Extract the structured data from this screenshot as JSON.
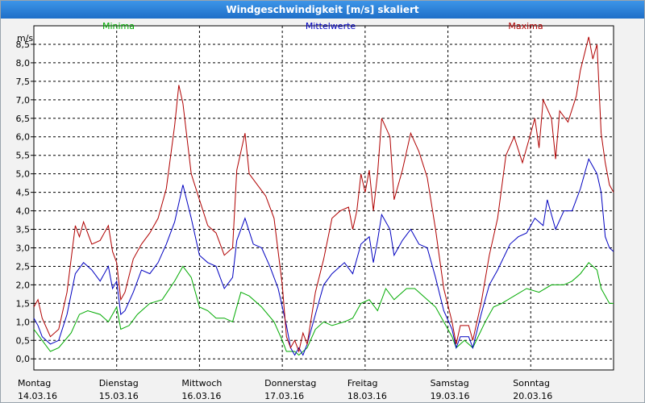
{
  "window": {
    "title": "Windgeschwindigkeit [m/s] skaliert"
  },
  "chart_data": {
    "type": "line",
    "title": "Windgeschwindigkeit [m/s] skaliert",
    "ylabel": "m/s",
    "ylim": [
      -0.3,
      9.0
    ],
    "xlim": [
      0,
      7
    ],
    "y_ticks": [
      "0,0",
      "0,5",
      "1,0",
      "1,5",
      "2,0",
      "2,5",
      "3,0",
      "3,5",
      "4,0",
      "4,5",
      "5,0",
      "5,5",
      "6,0",
      "6,5",
      "7,0",
      "7,5",
      "8,0",
      "8,5"
    ],
    "x_ticks": [
      {
        "day": "Montag",
        "date": "14.03.16"
      },
      {
        "day": "Dienstag",
        "date": "15.03.16"
      },
      {
        "day": "Mittwoch",
        "date": "16.03.16"
      },
      {
        "day": "Donnerstag",
        "date": "17.03.16"
      },
      {
        "day": "Freitag",
        "date": "18.03.16"
      },
      {
        "day": "Samstag",
        "date": "19.03.16"
      },
      {
        "day": "Sonntag",
        "date": "20.03.16"
      }
    ],
    "grid": true,
    "legend_position": "top",
    "series": [
      {
        "name": "Minima",
        "color": "#00aa00",
        "points": [
          [
            0.0,
            0.8
          ],
          [
            0.1,
            0.5
          ],
          [
            0.2,
            0.2
          ],
          [
            0.3,
            0.3
          ],
          [
            0.45,
            0.7
          ],
          [
            0.55,
            1.2
          ],
          [
            0.65,
            1.3
          ],
          [
            0.8,
            1.2
          ],
          [
            0.9,
            1.0
          ],
          [
            1.0,
            1.4
          ],
          [
            1.05,
            0.8
          ],
          [
            1.15,
            0.9
          ],
          [
            1.25,
            1.2
          ],
          [
            1.4,
            1.5
          ],
          [
            1.55,
            1.6
          ],
          [
            1.7,
            2.1
          ],
          [
            1.8,
            2.5
          ],
          [
            1.9,
            2.2
          ],
          [
            2.0,
            1.4
          ],
          [
            2.1,
            1.3
          ],
          [
            2.2,
            1.1
          ],
          [
            2.3,
            1.1
          ],
          [
            2.4,
            1.0
          ],
          [
            2.5,
            1.8
          ],
          [
            2.6,
            1.7
          ],
          [
            2.75,
            1.4
          ],
          [
            2.9,
            1.0
          ],
          [
            3.0,
            0.5
          ],
          [
            3.05,
            0.2
          ],
          [
            3.15,
            0.2
          ],
          [
            3.2,
            0.1
          ],
          [
            3.3,
            0.3
          ],
          [
            3.4,
            0.8
          ],
          [
            3.5,
            1.0
          ],
          [
            3.6,
            0.9
          ],
          [
            3.75,
            1.0
          ],
          [
            3.85,
            1.1
          ],
          [
            3.95,
            1.5
          ],
          [
            4.05,
            1.6
          ],
          [
            4.15,
            1.3
          ],
          [
            4.25,
            1.9
          ],
          [
            4.35,
            1.6
          ],
          [
            4.5,
            1.9
          ],
          [
            4.6,
            1.9
          ],
          [
            4.75,
            1.6
          ],
          [
            4.85,
            1.4
          ],
          [
            4.95,
            1.0
          ],
          [
            5.05,
            0.6
          ],
          [
            5.1,
            0.3
          ],
          [
            5.2,
            0.5
          ],
          [
            5.3,
            0.3
          ],
          [
            5.45,
            1.0
          ],
          [
            5.55,
            1.4
          ],
          [
            5.65,
            1.5
          ],
          [
            5.8,
            1.7
          ],
          [
            5.95,
            1.9
          ],
          [
            6.1,
            1.8
          ],
          [
            6.25,
            2.0
          ],
          [
            6.4,
            2.0
          ],
          [
            6.5,
            2.1
          ],
          [
            6.6,
            2.3
          ],
          [
            6.7,
            2.6
          ],
          [
            6.8,
            2.4
          ],
          [
            6.85,
            1.9
          ],
          [
            6.95,
            1.5
          ],
          [
            7.0,
            1.5
          ]
        ]
      },
      {
        "name": "Mittelwerte",
        "color": "#0000c0",
        "points": [
          [
            0.0,
            1.1
          ],
          [
            0.05,
            0.9
          ],
          [
            0.1,
            0.6
          ],
          [
            0.2,
            0.4
          ],
          [
            0.3,
            0.5
          ],
          [
            0.4,
            1.2
          ],
          [
            0.5,
            2.3
          ],
          [
            0.6,
            2.6
          ],
          [
            0.7,
            2.4
          ],
          [
            0.8,
            2.1
          ],
          [
            0.9,
            2.5
          ],
          [
            0.95,
            1.9
          ],
          [
            1.0,
            2.1
          ],
          [
            1.05,
            1.2
          ],
          [
            1.1,
            1.3
          ],
          [
            1.2,
            1.8
          ],
          [
            1.3,
            2.4
          ],
          [
            1.4,
            2.3
          ],
          [
            1.5,
            2.6
          ],
          [
            1.6,
            3.1
          ],
          [
            1.7,
            3.7
          ],
          [
            1.8,
            4.7
          ],
          [
            1.9,
            3.8
          ],
          [
            2.0,
            2.8
          ],
          [
            2.1,
            2.6
          ],
          [
            2.2,
            2.5
          ],
          [
            2.3,
            1.9
          ],
          [
            2.4,
            2.2
          ],
          [
            2.45,
            3.2
          ],
          [
            2.55,
            3.8
          ],
          [
            2.65,
            3.1
          ],
          [
            2.75,
            3.0
          ],
          [
            2.85,
            2.5
          ],
          [
            2.95,
            1.9
          ],
          [
            3.05,
            0.9
          ],
          [
            3.1,
            0.3
          ],
          [
            3.15,
            0.1
          ],
          [
            3.2,
            0.3
          ],
          [
            3.25,
            0.1
          ],
          [
            3.3,
            0.4
          ],
          [
            3.4,
            1.2
          ],
          [
            3.5,
            2.0
          ],
          [
            3.6,
            2.3
          ],
          [
            3.75,
            2.6
          ],
          [
            3.85,
            2.3
          ],
          [
            3.95,
            3.1
          ],
          [
            4.05,
            3.3
          ],
          [
            4.1,
            2.6
          ],
          [
            4.15,
            3.2
          ],
          [
            4.2,
            3.9
          ],
          [
            4.3,
            3.5
          ],
          [
            4.35,
            2.8
          ],
          [
            4.45,
            3.2
          ],
          [
            4.55,
            3.5
          ],
          [
            4.65,
            3.1
          ],
          [
            4.75,
            3.0
          ],
          [
            4.85,
            2.2
          ],
          [
            4.95,
            1.3
          ],
          [
            5.05,
            0.8
          ],
          [
            5.1,
            0.3
          ],
          [
            5.15,
            0.6
          ],
          [
            5.25,
            0.6
          ],
          [
            5.3,
            0.3
          ],
          [
            5.4,
            1.2
          ],
          [
            5.5,
            2.0
          ],
          [
            5.6,
            2.4
          ],
          [
            5.75,
            3.1
          ],
          [
            5.85,
            3.3
          ],
          [
            5.95,
            3.4
          ],
          [
            6.05,
            3.8
          ],
          [
            6.15,
            3.6
          ],
          [
            6.2,
            4.3
          ],
          [
            6.3,
            3.5
          ],
          [
            6.4,
            4.0
          ],
          [
            6.5,
            4.0
          ],
          [
            6.6,
            4.6
          ],
          [
            6.7,
            5.4
          ],
          [
            6.8,
            5.0
          ],
          [
            6.85,
            4.5
          ],
          [
            6.9,
            3.3
          ],
          [
            6.95,
            3.0
          ],
          [
            7.0,
            2.9
          ]
        ]
      },
      {
        "name": "Maxima",
        "color": "#b00000",
        "points": [
          [
            0.0,
            1.4
          ],
          [
            0.05,
            1.6
          ],
          [
            0.1,
            1.1
          ],
          [
            0.2,
            0.6
          ],
          [
            0.3,
            0.8
          ],
          [
            0.4,
            1.8
          ],
          [
            0.5,
            3.6
          ],
          [
            0.55,
            3.3
          ],
          [
            0.6,
            3.7
          ],
          [
            0.7,
            3.1
          ],
          [
            0.8,
            3.2
          ],
          [
            0.9,
            3.6
          ],
          [
            0.95,
            2.9
          ],
          [
            1.0,
            2.6
          ],
          [
            1.05,
            1.6
          ],
          [
            1.1,
            1.8
          ],
          [
            1.2,
            2.7
          ],
          [
            1.3,
            3.1
          ],
          [
            1.4,
            3.4
          ],
          [
            1.5,
            3.8
          ],
          [
            1.6,
            4.6
          ],
          [
            1.7,
            6.3
          ],
          [
            1.75,
            7.4
          ],
          [
            1.8,
            6.9
          ],
          [
            1.9,
            5.0
          ],
          [
            2.0,
            4.3
          ],
          [
            2.1,
            3.6
          ],
          [
            2.2,
            3.4
          ],
          [
            2.3,
            2.8
          ],
          [
            2.4,
            3.0
          ],
          [
            2.45,
            5.1
          ],
          [
            2.55,
            6.1
          ],
          [
            2.6,
            5.0
          ],
          [
            2.7,
            4.7
          ],
          [
            2.8,
            4.4
          ],
          [
            2.9,
            3.8
          ],
          [
            3.0,
            2.0
          ],
          [
            3.05,
            0.6
          ],
          [
            3.1,
            0.3
          ],
          [
            3.15,
            0.5
          ],
          [
            3.2,
            0.2
          ],
          [
            3.25,
            0.7
          ],
          [
            3.3,
            0.4
          ],
          [
            3.4,
            1.8
          ],
          [
            3.5,
            2.7
          ],
          [
            3.6,
            3.8
          ],
          [
            3.7,
            4.0
          ],
          [
            3.8,
            4.1
          ],
          [
            3.85,
            3.5
          ],
          [
            3.9,
            4.0
          ],
          [
            3.95,
            5.0
          ],
          [
            4.0,
            4.5
          ],
          [
            4.05,
            5.1
          ],
          [
            4.1,
            4.0
          ],
          [
            4.15,
            5.0
          ],
          [
            4.2,
            6.5
          ],
          [
            4.3,
            6.0
          ],
          [
            4.35,
            4.3
          ],
          [
            4.45,
            5.1
          ],
          [
            4.55,
            6.1
          ],
          [
            4.65,
            5.6
          ],
          [
            4.75,
            4.9
          ],
          [
            4.85,
            3.5
          ],
          [
            4.95,
            1.9
          ],
          [
            5.05,
            1.0
          ],
          [
            5.1,
            0.4
          ],
          [
            5.15,
            0.9
          ],
          [
            5.25,
            0.9
          ],
          [
            5.3,
            0.5
          ],
          [
            5.4,
            1.5
          ],
          [
            5.5,
            2.8
          ],
          [
            5.6,
            3.8
          ],
          [
            5.7,
            5.5
          ],
          [
            5.8,
            6.0
          ],
          [
            5.9,
            5.3
          ],
          [
            6.0,
            6.1
          ],
          [
            6.05,
            6.5
          ],
          [
            6.1,
            5.7
          ],
          [
            6.15,
            7.0
          ],
          [
            6.25,
            6.5
          ],
          [
            6.3,
            5.4
          ],
          [
            6.35,
            6.7
          ],
          [
            6.45,
            6.4
          ],
          [
            6.55,
            7.1
          ],
          [
            6.6,
            7.8
          ],
          [
            6.7,
            8.7
          ],
          [
            6.75,
            8.1
          ],
          [
            6.8,
            8.5
          ],
          [
            6.85,
            6.1
          ],
          [
            6.9,
            5.3
          ],
          [
            6.95,
            4.7
          ],
          [
            7.0,
            4.5
          ]
        ]
      }
    ]
  }
}
